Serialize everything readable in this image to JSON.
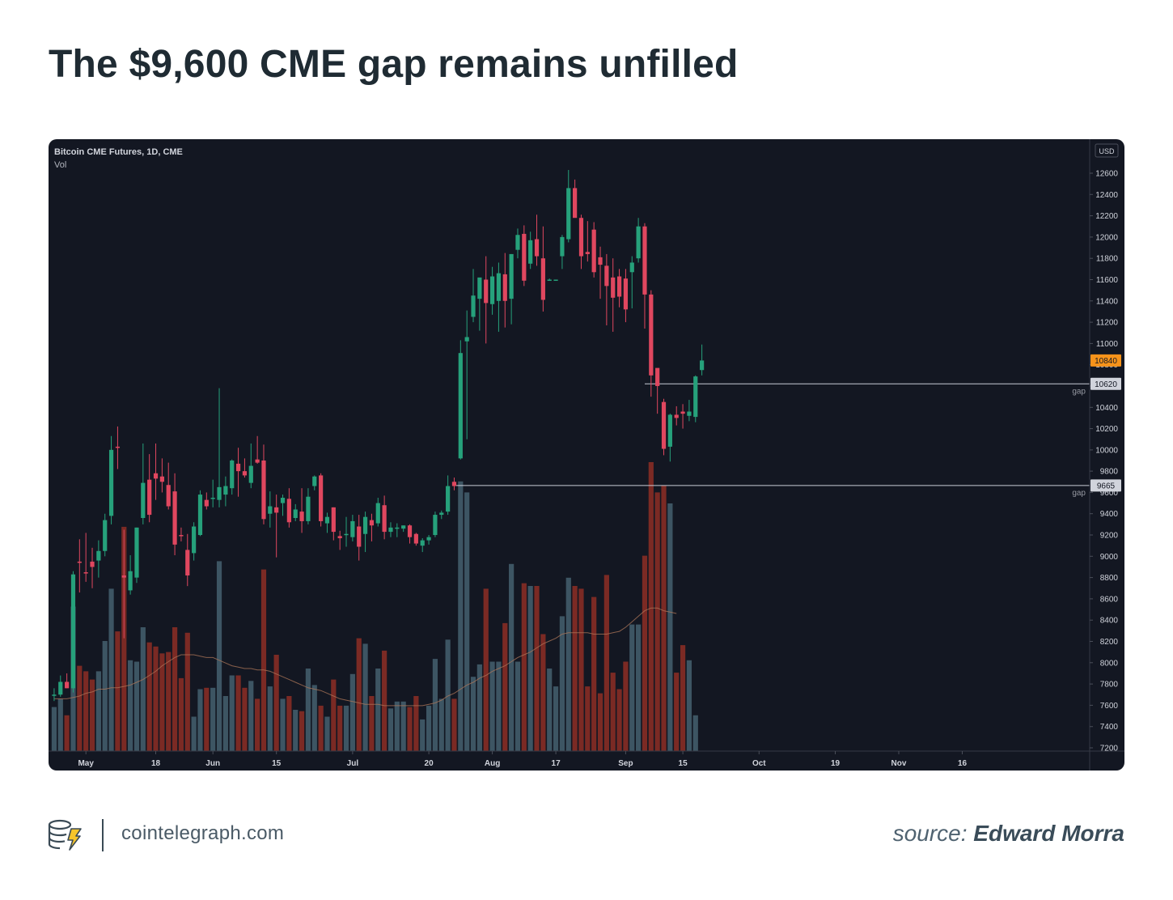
{
  "headline": "The $9,600 CME gap remains unfilled",
  "footer": {
    "site": "cointelegraph.com",
    "source_prefix": "source: ",
    "source_author": "Edward Morra"
  },
  "colors": {
    "background": "#131722",
    "up": "#26a17b",
    "down": "#e0475f",
    "vol_up": "#3d5563",
    "vol_down": "#7b2a24",
    "grid_text": "#d1d4dc",
    "price_tag_last": "#f7931a"
  },
  "chart_data": {
    "type": "candlestick",
    "title": "Bitcoin CME Futures, 1D, CME",
    "volume_label": "Vol",
    "currency_label": "USD",
    "ylim": [
      7150,
      12750
    ],
    "yticks": [
      7200,
      7400,
      7600,
      7800,
      8000,
      8200,
      8400,
      8600,
      8800,
      9000,
      9200,
      9400,
      9600,
      9800,
      10000,
      10200,
      10400,
      10600,
      10800,
      11000,
      11200,
      11400,
      11600,
      11800,
      12000,
      12200,
      12400,
      12600
    ],
    "x_ticks": [
      {
        "label": "May",
        "index": 5
      },
      {
        "label": "18",
        "index": 16
      },
      {
        "label": "Jun",
        "index": 25
      },
      {
        "label": "15",
        "index": 35
      },
      {
        "label": "Jul",
        "index": 47
      },
      {
        "label": "20",
        "index": 59
      },
      {
        "label": "Aug",
        "index": 69
      },
      {
        "label": "17",
        "index": 79
      },
      {
        "label": "Sep",
        "index": 90
      },
      {
        "label": "15",
        "index": 99
      },
      {
        "label": "Oct",
        "index": 111
      },
      {
        "label": "19",
        "index": 123
      },
      {
        "label": "Nov",
        "index": 133
      },
      {
        "label": "16",
        "index": 143
      }
    ],
    "gaps": [
      {
        "price": 10620,
        "label": "gap",
        "tag": "10620",
        "start_index": 93
      },
      {
        "price": 9665,
        "label": "gap",
        "tag": "9665",
        "start_index": 63
      }
    ],
    "last_price": {
      "price": 10840,
      "tag": "10840"
    },
    "volume_ma": [
      0.38,
      0.38,
      0.38,
      0.39,
      0.4,
      0.42,
      0.43,
      0.45,
      0.45,
      0.46,
      0.46,
      0.47,
      0.48,
      0.5,
      0.52,
      0.55,
      0.58,
      0.62,
      0.65,
      0.68,
      0.7,
      0.7,
      0.7,
      0.69,
      0.68,
      0.68,
      0.66,
      0.64,
      0.62,
      0.61,
      0.6,
      0.6,
      0.59,
      0.59,
      0.58,
      0.56,
      0.54,
      0.52,
      0.5,
      0.48,
      0.46,
      0.45,
      0.44,
      0.42,
      0.4,
      0.38,
      0.37,
      0.36,
      0.35,
      0.34,
      0.34,
      0.34,
      0.33,
      0.33,
      0.33,
      0.33,
      0.33,
      0.33,
      0.33,
      0.34,
      0.35,
      0.37,
      0.4,
      0.42,
      0.45,
      0.48,
      0.5,
      0.53,
      0.55,
      0.58,
      0.6,
      0.62,
      0.65,
      0.68,
      0.7,
      0.72,
      0.75,
      0.78,
      0.8,
      0.82,
      0.85,
      0.86,
      0.86,
      0.86,
      0.86,
      0.85,
      0.85,
      0.85,
      0.86,
      0.87,
      0.9,
      0.94,
      0.98,
      1.02,
      1.04,
      1.04,
      1.02,
      1.01,
      1.0
    ],
    "candles": [
      {
        "o": 7690,
        "h": 7760,
        "l": 7640,
        "c": 7700,
        "v": 0.32
      },
      {
        "o": 7700,
        "h": 7880,
        "l": 7680,
        "c": 7820,
        "v": 0.38
      },
      {
        "o": 7820,
        "h": 7900,
        "l": 7760,
        "c": 7760,
        "v": 0.26
      },
      {
        "o": 7760,
        "h": 8860,
        "l": 7720,
        "c": 8830,
        "v": 1.05
      },
      {
        "o": 8950,
        "h": 9160,
        "l": 8660,
        "c": 8940,
        "v": 0.62
      },
      {
        "o": 8850,
        "h": 9220,
        "l": 8760,
        "c": 8840,
        "v": 0.58
      },
      {
        "o": 8950,
        "h": 9080,
        "l": 8700,
        "c": 8900,
        "v": 0.52
      },
      {
        "o": 8960,
        "h": 9150,
        "l": 8800,
        "c": 9050,
        "v": 0.58
      },
      {
        "o": 9050,
        "h": 9400,
        "l": 9000,
        "c": 9340,
        "v": 0.8
      },
      {
        "o": 9380,
        "h": 10130,
        "l": 9300,
        "c": 10000,
        "v": 1.18
      },
      {
        "o": 10030,
        "h": 10220,
        "l": 9820,
        "c": 10020,
        "v": 0.87
      },
      {
        "o": 8820,
        "h": 9250,
        "l": 8230,
        "c": 8800,
        "v": 1.63
      },
      {
        "o": 8680,
        "h": 9010,
        "l": 8640,
        "c": 8860,
        "v": 0.66
      },
      {
        "o": 8800,
        "h": 9270,
        "l": 8750,
        "c": 9270,
        "v": 0.65
      },
      {
        "o": 9360,
        "h": 10060,
        "l": 9300,
        "c": 9690,
        "v": 0.9
      },
      {
        "o": 9720,
        "h": 9960,
        "l": 9320,
        "c": 9390,
        "v": 0.79
      },
      {
        "o": 9780,
        "h": 10060,
        "l": 9530,
        "c": 9730,
        "v": 0.76
      },
      {
        "o": 9750,
        "h": 9920,
        "l": 9600,
        "c": 9700,
        "v": 0.71
      },
      {
        "o": 9670,
        "h": 9880,
        "l": 9440,
        "c": 9470,
        "v": 0.72
      },
      {
        "o": 9610,
        "h": 9780,
        "l": 9010,
        "c": 9110,
        "v": 0.9
      },
      {
        "o": 9200,
        "h": 9270,
        "l": 9140,
        "c": 9190,
        "v": 0.53
      },
      {
        "o": 9060,
        "h": 9210,
        "l": 8720,
        "c": 8820,
        "v": 0.86
      },
      {
        "o": 9030,
        "h": 9320,
        "l": 8960,
        "c": 9280,
        "v": 0.25
      },
      {
        "o": 9200,
        "h": 9620,
        "l": 9190,
        "c": 9580,
        "v": 0.45
      },
      {
        "o": 9530,
        "h": 9600,
        "l": 9440,
        "c": 9470,
        "v": 0.46
      },
      {
        "o": 9550,
        "h": 9720,
        "l": 9460,
        "c": 9550,
        "v": 0.46
      },
      {
        "o": 9530,
        "h": 10580,
        "l": 9460,
        "c": 9650,
        "v": 1.38
      },
      {
        "o": 9580,
        "h": 9750,
        "l": 9470,
        "c": 9660,
        "v": 0.4
      },
      {
        "o": 9640,
        "h": 9910,
        "l": 9580,
        "c": 9900,
        "v": 0.55
      },
      {
        "o": 9870,
        "h": 10020,
        "l": 9560,
        "c": 9800,
        "v": 0.55
      },
      {
        "o": 9800,
        "h": 9920,
        "l": 9740,
        "c": 9760,
        "v": 0.46
      },
      {
        "o": 9690,
        "h": 10060,
        "l": 9640,
        "c": 9850,
        "v": 0.51
      },
      {
        "o": 9910,
        "h": 10130,
        "l": 9870,
        "c": 9880,
        "v": 0.38
      },
      {
        "o": 9900,
        "h": 10050,
        "l": 9300,
        "c": 9350,
        "v": 1.32
      },
      {
        "o": 9400,
        "h": 9610,
        "l": 9270,
        "c": 9470,
        "v": 0.47
      },
      {
        "o": 9460,
        "h": 9580,
        "l": 8990,
        "c": 9410,
        "v": 0.7
      },
      {
        "o": 9500,
        "h": 9580,
        "l": 9380,
        "c": 9550,
        "v": 0.38
      },
      {
        "o": 9540,
        "h": 9640,
        "l": 9270,
        "c": 9320,
        "v": 0.4
      },
      {
        "o": 9360,
        "h": 9490,
        "l": 9330,
        "c": 9440,
        "v": 0.3
      },
      {
        "o": 9420,
        "h": 9640,
        "l": 9220,
        "c": 9330,
        "v": 0.29
      },
      {
        "o": 9330,
        "h": 9640,
        "l": 9300,
        "c": 9560,
        "v": 0.6
      },
      {
        "o": 9660,
        "h": 9760,
        "l": 9620,
        "c": 9750,
        "v": 0.48
      },
      {
        "o": 9760,
        "h": 9780,
        "l": 9280,
        "c": 9330,
        "v": 0.33
      },
      {
        "o": 9310,
        "h": 9410,
        "l": 9220,
        "c": 9370,
        "v": 0.25
      },
      {
        "o": 9460,
        "h": 9460,
        "l": 9150,
        "c": 9230,
        "v": 0.52
      },
      {
        "o": 9190,
        "h": 9240,
        "l": 9060,
        "c": 9170,
        "v": 0.33
      },
      {
        "o": 9200,
        "h": 9370,
        "l": 9090,
        "c": 9210,
        "v": 0.33
      },
      {
        "o": 9180,
        "h": 9390,
        "l": 9140,
        "c": 9330,
        "v": 0.56
      },
      {
        "o": 9280,
        "h": 9390,
        "l": 8960,
        "c": 9090,
        "v": 0.82
      },
      {
        "o": 9210,
        "h": 9420,
        "l": 9040,
        "c": 9370,
        "v": 0.78
      },
      {
        "o": 9340,
        "h": 9400,
        "l": 9140,
        "c": 9290,
        "v": 0.4
      },
      {
        "o": 9310,
        "h": 9550,
        "l": 9280,
        "c": 9500,
        "v": 0.6
      },
      {
        "o": 9480,
        "h": 9570,
        "l": 9160,
        "c": 9230,
        "v": 0.73
      },
      {
        "o": 9230,
        "h": 9320,
        "l": 9180,
        "c": 9270,
        "v": 0.31
      },
      {
        "o": 9270,
        "h": 9310,
        "l": 9180,
        "c": 9270,
        "v": 0.36
      },
      {
        "o": 9260,
        "h": 9290,
        "l": 9230,
        "c": 9290,
        "v": 0.36
      },
      {
        "o": 9290,
        "h": 9300,
        "l": 9120,
        "c": 9180,
        "v": 0.32
      },
      {
        "o": 9210,
        "h": 9220,
        "l": 9100,
        "c": 9120,
        "v": 0.4
      },
      {
        "o": 9100,
        "h": 9170,
        "l": 9040,
        "c": 9150,
        "v": 0.23
      },
      {
        "o": 9150,
        "h": 9200,
        "l": 9110,
        "c": 9180,
        "v": 0.33
      },
      {
        "o": 9200,
        "h": 9420,
        "l": 9180,
        "c": 9390,
        "v": 0.67
      },
      {
        "o": 9390,
        "h": 9430,
        "l": 9350,
        "c": 9410,
        "v": 0.38
      },
      {
        "o": 9420,
        "h": 9760,
        "l": 9390,
        "c": 9660,
        "v": 0.81
      },
      {
        "o": 9700,
        "h": 9740,
        "l": 9620,
        "c": 9660,
        "v": 0.38
      },
      {
        "o": 9920,
        "h": 11030,
        "l": 9910,
        "c": 10910,
        "v": 1.96
      },
      {
        "o": 11020,
        "h": 11310,
        "l": 10100,
        "c": 11060,
        "v": 1.88
      },
      {
        "o": 11250,
        "h": 11700,
        "l": 11200,
        "c": 11450,
        "v": 0.54
      },
      {
        "o": 11420,
        "h": 11590,
        "l": 11120,
        "c": 11620,
        "v": 0.63
      },
      {
        "o": 11600,
        "h": 11820,
        "l": 11000,
        "c": 11380,
        "v": 1.18
      },
      {
        "o": 11370,
        "h": 11720,
        "l": 11270,
        "c": 11630,
        "v": 0.65
      },
      {
        "o": 11400,
        "h": 11760,
        "l": 11110,
        "c": 11660,
        "v": 0.65
      },
      {
        "o": 11650,
        "h": 11850,
        "l": 11150,
        "c": 11400,
        "v": 0.93
      },
      {
        "o": 11420,
        "h": 11840,
        "l": 11180,
        "c": 11840,
        "v": 1.36
      },
      {
        "o": 11880,
        "h": 12080,
        "l": 11800,
        "c": 12020,
        "v": 0.65
      },
      {
        "o": 12030,
        "h": 12110,
        "l": 11540,
        "c": 11590,
        "v": 1.22
      },
      {
        "o": 11750,
        "h": 12050,
        "l": 11700,
        "c": 11970,
        "v": 1.2
      },
      {
        "o": 11980,
        "h": 12210,
        "l": 11730,
        "c": 11820,
        "v": 1.2
      },
      {
        "o": 11800,
        "h": 12100,
        "l": 11300,
        "c": 11410,
        "v": 0.85
      },
      {
        "o": 11600,
        "h": 11610,
        "l": 11590,
        "c": 11600,
        "v": 0.6
      },
      {
        "o": 11600,
        "h": 11600,
        "l": 11590,
        "c": 11600,
        "v": 0.47
      },
      {
        "o": 11820,
        "h": 12020,
        "l": 11700,
        "c": 12000,
        "v": 0.98
      },
      {
        "o": 11980,
        "h": 12630,
        "l": 11950,
        "c": 12460,
        "v": 1.26
      },
      {
        "o": 12460,
        "h": 12540,
        "l": 12190,
        "c": 12180,
        "v": 1.2
      },
      {
        "o": 12180,
        "h": 12210,
        "l": 11700,
        "c": 11820,
        "v": 1.18
      },
      {
        "o": 11860,
        "h": 12150,
        "l": 11770,
        "c": 11840,
        "v": 0.47
      },
      {
        "o": 12070,
        "h": 12140,
        "l": 11620,
        "c": 11670,
        "v": 1.12
      },
      {
        "o": 11810,
        "h": 11910,
        "l": 11420,
        "c": 11740,
        "v": 0.42
      },
      {
        "o": 11730,
        "h": 11840,
        "l": 11170,
        "c": 11540,
        "v": 1.28
      },
      {
        "o": 11620,
        "h": 11800,
        "l": 11110,
        "c": 11430,
        "v": 0.57
      },
      {
        "o": 11630,
        "h": 11700,
        "l": 11340,
        "c": 11440,
        "v": 0.45
      },
      {
        "o": 11610,
        "h": 11700,
        "l": 11200,
        "c": 11320,
        "v": 0.65
      },
      {
        "o": 11670,
        "h": 11820,
        "l": 11330,
        "c": 11760,
        "v": 0.92
      },
      {
        "o": 11800,
        "h": 12180,
        "l": 11760,
        "c": 12100,
        "v": 0.92
      },
      {
        "o": 12100,
        "h": 12130,
        "l": 11140,
        "c": 11460,
        "v": 1.42
      },
      {
        "o": 11460,
        "h": 11500,
        "l": 10500,
        "c": 10700,
        "v": 2.1
      },
      {
        "o": 10770,
        "h": 10760,
        "l": 10340,
        "c": 10600,
        "v": 1.88
      },
      {
        "o": 10450,
        "h": 10480,
        "l": 9950,
        "c": 10010,
        "v": 1.93
      },
      {
        "o": 10030,
        "h": 10340,
        "l": 9890,
        "c": 10330,
        "v": 1.8
      },
      {
        "o": 10330,
        "h": 10410,
        "l": 10230,
        "c": 10300,
        "v": 0.57
      },
      {
        "o": 10360,
        "h": 10430,
        "l": 10200,
        "c": 10340,
        "v": 0.77
      },
      {
        "o": 10320,
        "h": 10470,
        "l": 10270,
        "c": 10360,
        "v": 0.66
      },
      {
        "o": 10310,
        "h": 10700,
        "l": 10260,
        "c": 10690,
        "v": 0.26
      },
      {
        "o": 10750,
        "h": 10990,
        "l": 10700,
        "c": 10840,
        "v": 0.0
      }
    ]
  }
}
